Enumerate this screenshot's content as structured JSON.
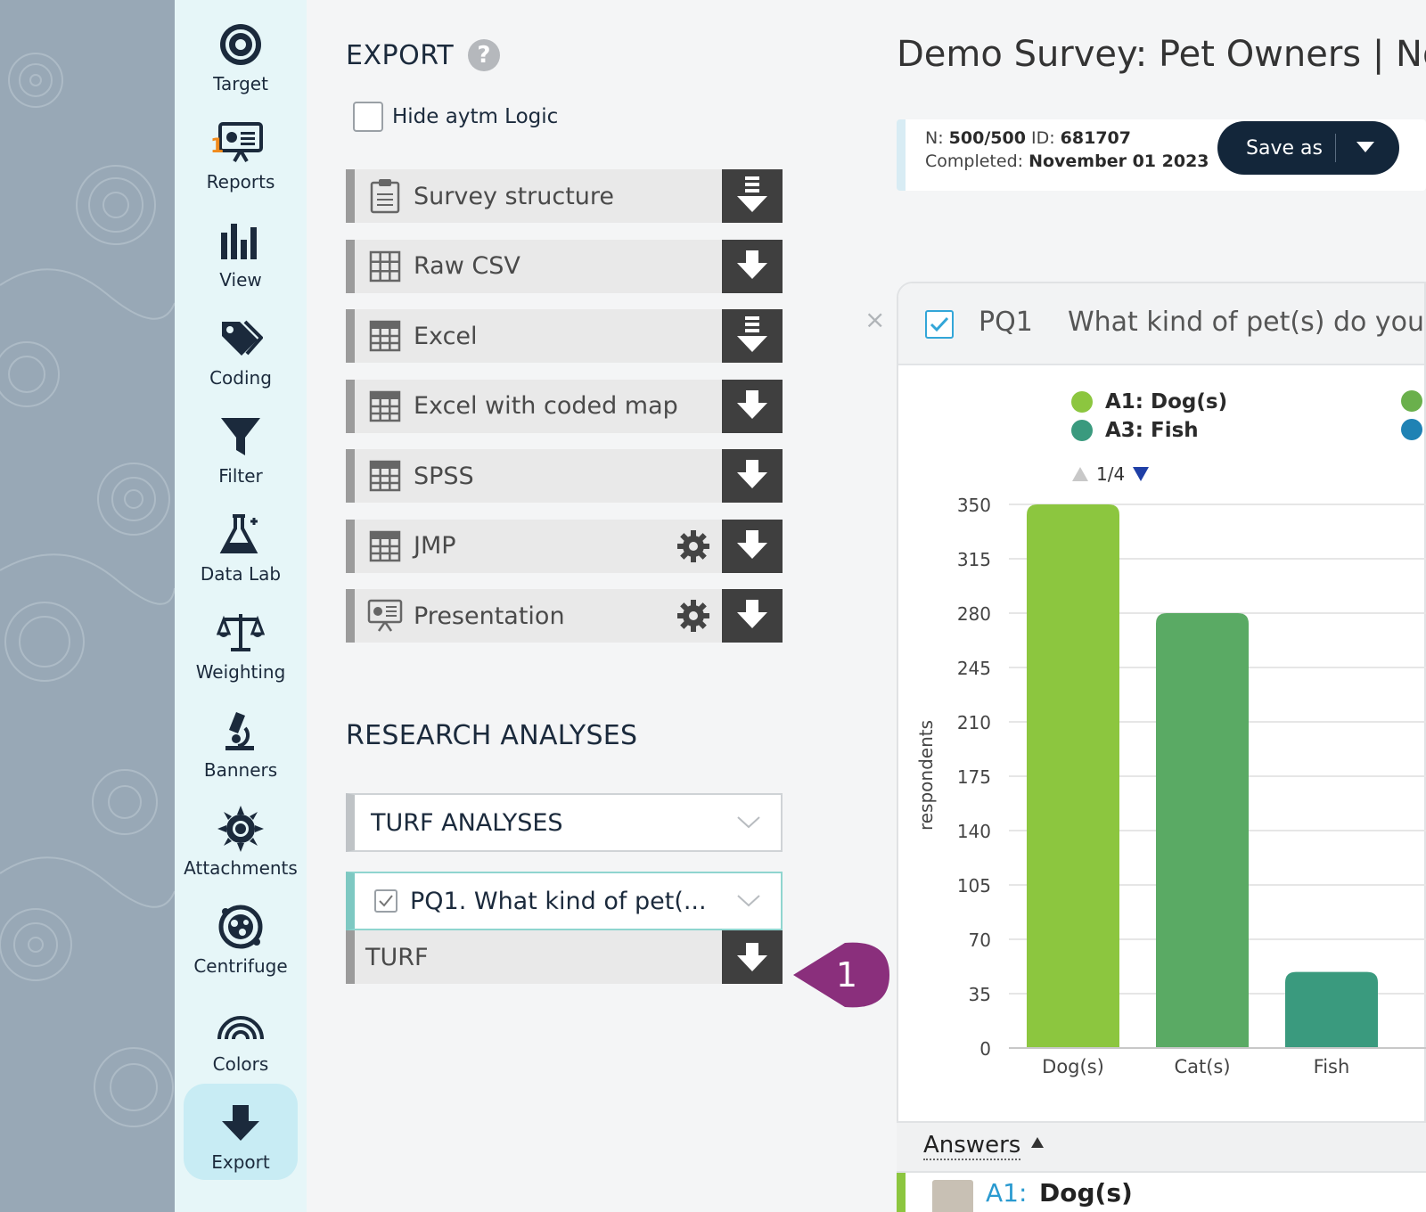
{
  "nav": {
    "items": [
      {
        "label": "Target",
        "icon": "target-icon"
      },
      {
        "label": "Reports",
        "icon": "reports-icon",
        "badge": "1"
      },
      {
        "label": "View",
        "icon": "bar-chart-icon"
      },
      {
        "label": "Coding",
        "icon": "tags-icon"
      },
      {
        "label": "Filter",
        "icon": "funnel-icon"
      },
      {
        "label": "Data Lab",
        "icon": "flask-icon"
      },
      {
        "label": "Weighting",
        "icon": "scales-icon"
      },
      {
        "label": "Banners",
        "icon": "microscope-icon"
      },
      {
        "label": "Attachments",
        "icon": "sun-gear-icon"
      },
      {
        "label": "Centrifuge",
        "icon": "centrifuge-icon"
      },
      {
        "label": "Colors",
        "icon": "rainbow-icon"
      },
      {
        "label": "Export",
        "icon": "download-arrow-icon",
        "active": true
      }
    ]
  },
  "export": {
    "title": "EXPORT",
    "help": "?",
    "hide_logic_label": "Hide aytm Logic",
    "items": [
      {
        "label": "Survey structure",
        "icon": "clipboard-icon",
        "gear": false,
        "download": "multi"
      },
      {
        "label": "Raw CSV",
        "icon": "grid-icon",
        "gear": false,
        "download": "single"
      },
      {
        "label": "Excel",
        "icon": "spreadsheet-icon",
        "gear": false,
        "download": "multi"
      },
      {
        "label": "Excel with coded map",
        "icon": "spreadsheet-icon",
        "gear": false,
        "download": "single"
      },
      {
        "label": "SPSS",
        "icon": "spreadsheet-icon",
        "gear": false,
        "download": "single"
      },
      {
        "label": "JMP",
        "icon": "spreadsheet-icon",
        "gear": true,
        "download": "single"
      },
      {
        "label": "Presentation",
        "icon": "presentation-icon",
        "gear": true,
        "download": "single"
      }
    ]
  },
  "research": {
    "title": "RESEARCH ANALYSES",
    "dropdown_type": "TURF ANALYSES",
    "dropdown_question": "PQ1. What kind of pet(...",
    "turf_label": "TURF",
    "callout_number": "1"
  },
  "survey": {
    "title": "Demo Survey: Pet Owners | Nove",
    "n_label": "N:",
    "n_value": "500/500",
    "id_label": "ID:",
    "id_value": "681707",
    "completed_label": "Completed:",
    "completed_value": "November 01 2023",
    "save_label": "Save as"
  },
  "question": {
    "close": "×",
    "id": "PQ1",
    "text": "What kind of pet(s) do you c",
    "legend": [
      {
        "label": "A1: Dog(s)",
        "color": "#8cc63f"
      },
      {
        "label": "A3: Fish",
        "color": "#3a9a7e"
      }
    ],
    "pager": "1/4",
    "answers_label": "Answers",
    "answer_row": {
      "code": "A1:",
      "label": "Dog(s)"
    }
  },
  "chart_data": {
    "type": "bar",
    "categories": [
      "Dog(s)",
      "Cat(s)",
      "Fish"
    ],
    "values": [
      350,
      280,
      49
    ],
    "colors": [
      "#8cc63f",
      "#5aaa64",
      "#3a9a7e"
    ],
    "ylabel": "respondents",
    "yticks": [
      0,
      35,
      70,
      105,
      140,
      175,
      210,
      245,
      280,
      315,
      350
    ],
    "ylim": [
      0,
      350
    ],
    "grid": true
  }
}
